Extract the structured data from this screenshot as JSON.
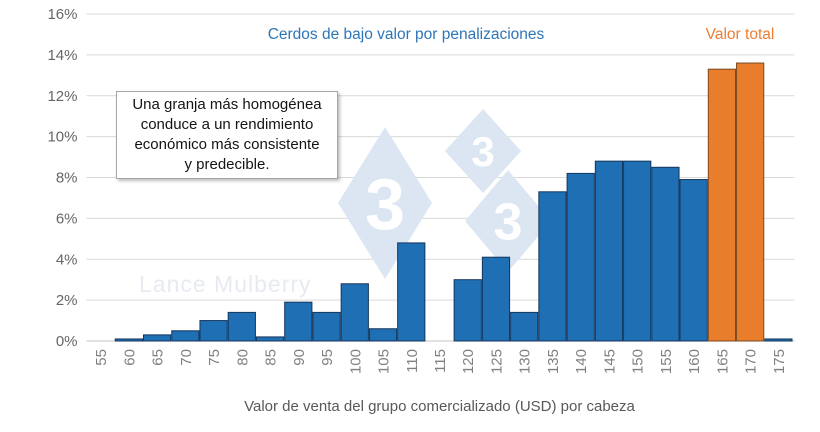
{
  "annotation": {
    "lines": [
      "Una granja más homogénea",
      "conduce a un rendimiento",
      "económico más consistente",
      "y predecible."
    ]
  },
  "watermark": {
    "author": "Lance Mulberry",
    "logo_digit": "3"
  },
  "chart_data": {
    "type": "bar",
    "title": "",
    "categories": [
      "55",
      "60",
      "65",
      "70",
      "75",
      "80",
      "85",
      "90",
      "95",
      "100",
      "105",
      "110",
      "115",
      "120",
      "125",
      "130",
      "135",
      "140",
      "145",
      "150",
      "155",
      "160",
      "165",
      "170",
      "175"
    ],
    "series": [
      {
        "name": "Cerdos de bajo valor por penalizaciones",
        "color": "#1F6FB4",
        "stroke": "#16365C",
        "values": [
          0,
          0.1,
          0.3,
          0.5,
          1.0,
          1.4,
          0.2,
          1.9,
          1.4,
          2.8,
          0.6,
          4.8,
          0,
          3.0,
          4.1,
          1.4,
          7.3,
          8.2,
          8.8,
          8.8,
          8.5,
          7.9,
          0,
          0,
          0.1
        ]
      },
      {
        "name": "Valor total",
        "color": "#E87E2B",
        "stroke": "#7B4A21",
        "values": [
          0,
          0,
          0,
          0,
          0,
          0,
          0,
          0,
          0,
          0,
          0,
          0,
          0,
          0,
          0,
          0,
          0,
          0,
          0,
          0,
          0,
          0,
          13.3,
          13.6,
          0
        ]
      }
    ],
    "xlabel": "Valor de venta del grupo comercializado (USD) por cabeza",
    "ylabel": "",
    "ylim": [
      0,
      16
    ],
    "ytick_step": 2,
    "ytick_labels": [
      "0%",
      "2%",
      "4%",
      "6%",
      "8%",
      "10%",
      "12%",
      "14%",
      "16%"
    ],
    "grid": true,
    "grid_color": "#D9D9D9",
    "axis_label_color": "#737373",
    "legend_position": "top",
    "watermark_logo_color": "#DCE6F2"
  }
}
